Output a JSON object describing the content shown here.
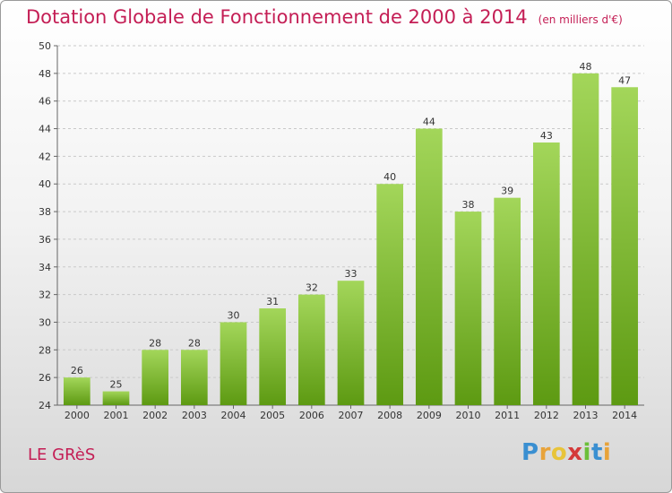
{
  "title": "Dotation Globale de Fonctionnement de 2000 à 2014",
  "unit_note": "(en milliers d'€)",
  "commune": "LE GRèS",
  "logo": {
    "letters": [
      "P",
      "r",
      "o",
      "x",
      "i",
      "t",
      "i"
    ],
    "colors": [
      "#3a8fd1",
      "#e8a33a",
      "#e8c43a",
      "#d43a3a",
      "#6cbf3a",
      "#3a8fd1",
      "#e8a33a"
    ]
  },
  "colors": {
    "title": "#c41e55",
    "bar_light": "#a3d65a",
    "bar_dark": "#5d9a12",
    "grid": "#c9c9c9"
  },
  "chart_data": {
    "type": "bar",
    "title": "Dotation Globale de Fonctionnement de 2000 à 2014",
    "subtitle": "(en milliers d'€)",
    "categories": [
      "2000",
      "2001",
      "2002",
      "2003",
      "2004",
      "2005",
      "2006",
      "2007",
      "2008",
      "2009",
      "2010",
      "2011",
      "2012",
      "2013",
      "2014"
    ],
    "values": [
      26,
      25,
      28,
      28,
      30,
      31,
      32,
      33,
      40,
      44,
      38,
      39,
      43,
      48,
      47
    ],
    "ylim": [
      24,
      50
    ],
    "yticks": [
      24,
      26,
      28,
      30,
      32,
      34,
      36,
      38,
      40,
      42,
      44,
      46,
      48,
      50
    ],
    "grid": true,
    "xlabel": "",
    "ylabel": ""
  }
}
